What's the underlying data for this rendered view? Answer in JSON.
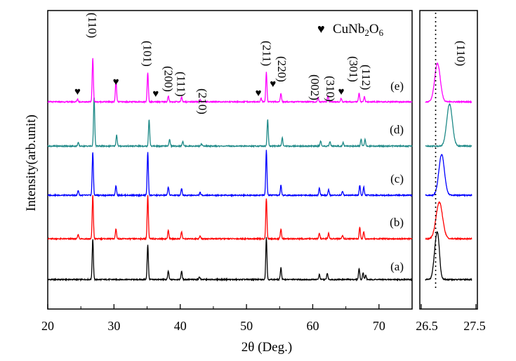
{
  "chart_data": [
    {
      "type": "line",
      "xlabel": "2θ (Deg.)",
      "ylabel": "Intensity(arb.unit)",
      "xlim": [
        20,
        75
      ],
      "xticks": [
        20,
        30,
        40,
        50,
        60,
        70
      ],
      "grid": false,
      "legend": {
        "marker": "♥",
        "formula": "CuNb",
        "sub1": "2",
        "mid": "O",
        "sub2": "6",
        "position": "top-right"
      },
      "series": [
        {
          "name": "(a)",
          "color": "#000000",
          "peaks": [
            [
              26.8,
              58
            ],
            [
              35.1,
              50
            ],
            [
              38.2,
              12
            ],
            [
              40.2,
              12
            ],
            [
              42.9,
              4
            ],
            [
              53.0,
              60
            ],
            [
              55.2,
              17
            ],
            [
              61.0,
              7
            ],
            [
              62.2,
              9
            ],
            [
              67.0,
              16
            ],
            [
              67.6,
              10
            ],
            [
              68.0,
              6
            ]
          ]
        },
        {
          "name": "(b)",
          "color": "#ff0000",
          "peaks": [
            [
              24.6,
              6
            ],
            [
              26.8,
              62
            ],
            [
              30.3,
              14
            ],
            [
              35.1,
              62
            ],
            [
              38.2,
              12
            ],
            [
              40.2,
              10
            ],
            [
              43.0,
              4
            ],
            [
              53.0,
              58
            ],
            [
              55.2,
              14
            ],
            [
              61.0,
              8
            ],
            [
              62.4,
              8
            ],
            [
              64.5,
              5
            ],
            [
              67.1,
              16
            ],
            [
              67.7,
              10
            ]
          ]
        },
        {
          "name": "(c)",
          "color": "#0000ff",
          "peaks": [
            [
              24.6,
              7
            ],
            [
              26.8,
              62
            ],
            [
              30.3,
              14
            ],
            [
              35.1,
              62
            ],
            [
              38.2,
              12
            ],
            [
              40.2,
              10
            ],
            [
              43.0,
              4
            ],
            [
              53.0,
              64
            ],
            [
              55.2,
              14
            ],
            [
              61.0,
              10
            ],
            [
              62.4,
              8
            ],
            [
              64.5,
              6
            ],
            [
              67.1,
              14
            ],
            [
              67.7,
              12
            ]
          ]
        },
        {
          "name": "(d)",
          "color": "#1f8a88",
          "peaks": [
            [
              24.6,
              5
            ],
            [
              27.0,
              70
            ],
            [
              30.4,
              16
            ],
            [
              35.3,
              38
            ],
            [
              38.4,
              10
            ],
            [
              40.4,
              7
            ],
            [
              43.2,
              3
            ],
            [
              53.2,
              38
            ],
            [
              55.4,
              12
            ],
            [
              61.2,
              7
            ],
            [
              62.6,
              6
            ],
            [
              64.6,
              5
            ],
            [
              67.3,
              10
            ],
            [
              67.9,
              10
            ]
          ]
        },
        {
          "name": "(e)",
          "color": "#ff00ff",
          "peaks": [
            [
              24.5,
              4
            ],
            [
              26.8,
              62
            ],
            [
              30.3,
              30
            ],
            [
              35.1,
              42
            ],
            [
              38.2,
              8
            ],
            [
              40.2,
              7
            ],
            [
              43.0,
              3
            ],
            [
              52.2,
              5
            ],
            [
              53.0,
              42
            ],
            [
              55.2,
              12
            ],
            [
              60.8,
              6
            ],
            [
              62.3,
              8
            ],
            [
              64.3,
              5
            ],
            [
              67.0,
              12
            ],
            [
              67.8,
              7
            ]
          ]
        }
      ],
      "hkl_labels": [
        {
          "label": "(110)",
          "x": 26.8
        },
        {
          "label": "(101)",
          "x": 35.1
        },
        {
          "label": "(200)",
          "x": 38.3
        },
        {
          "label": "(111)",
          "x": 40.2
        },
        {
          "label": "(210)",
          "x": 43.4
        },
        {
          "label": "(211)",
          "x": 53.1
        },
        {
          "label": "(220)",
          "x": 55.4
        },
        {
          "label": "(002)",
          "x": 60.4
        },
        {
          "label": "(310)",
          "x": 62.7
        },
        {
          "label": "(301)",
          "x": 66.2
        },
        {
          "label": "(112)",
          "x": 68.1
        }
      ],
      "heart_markers": [
        24.5,
        30.3,
        36.3,
        51.8,
        54.0,
        64.3
      ]
    },
    {
      "type": "line",
      "xlim": [
        26.5,
        27.5
      ],
      "xticks": [
        26.5,
        27.5
      ],
      "hkl_label": "(110)",
      "reference_x": 26.72,
      "series": [
        {
          "name": "(a)",
          "color": "#000000",
          "center": 26.74,
          "sigma": 0.05,
          "amp": 58,
          "shoulder": 0.04
        },
        {
          "name": "(b)",
          "color": "#ff0000",
          "center": 26.8,
          "sigma": 0.07,
          "amp": 52,
          "shoulder": 0
        },
        {
          "name": "(c)",
          "color": "#0000ff",
          "center": 26.85,
          "sigma": 0.06,
          "amp": 58,
          "shoulder": 0
        },
        {
          "name": "(d)",
          "color": "#1f8a88",
          "center": 27.02,
          "sigma": 0.06,
          "amp": 60,
          "shoulder": 0
        },
        {
          "name": "(e)",
          "color": "#ff00ff",
          "center": 26.76,
          "sigma": 0.06,
          "amp": 55,
          "shoulder": 0
        }
      ]
    }
  ]
}
